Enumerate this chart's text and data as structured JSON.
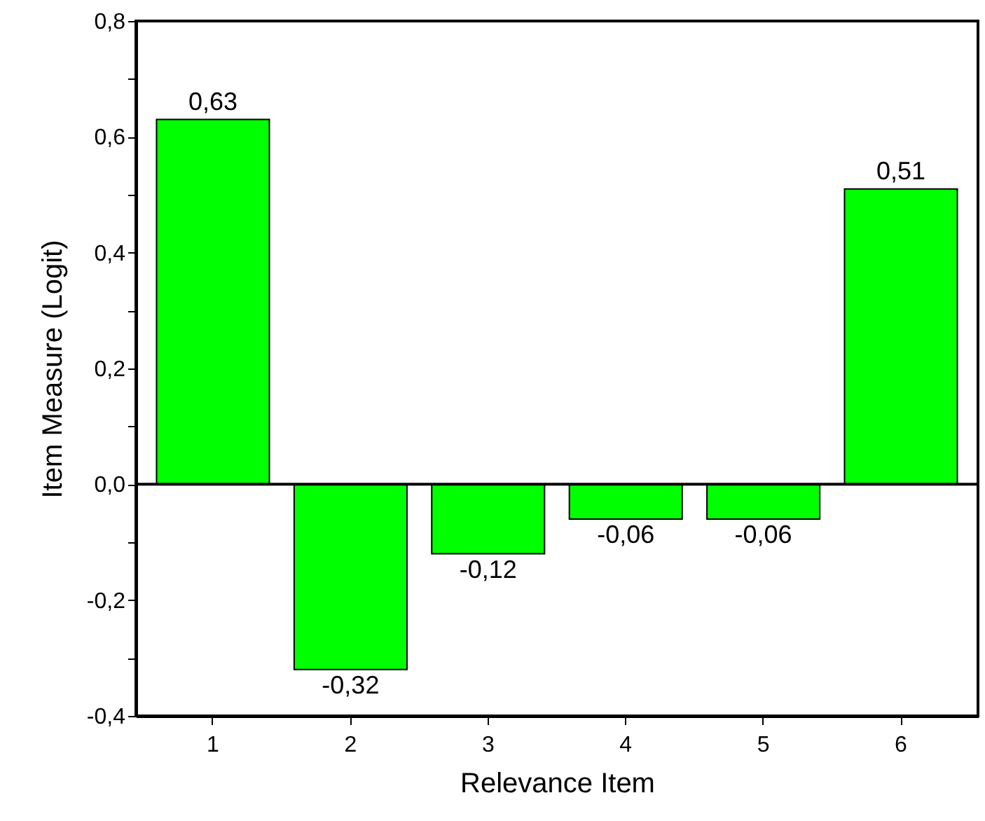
{
  "chart_data": {
    "type": "bar",
    "xlabel": "Relevance Item",
    "ylabel": "Item Measure (Logit)",
    "categories": [
      "1",
      "2",
      "3",
      "4",
      "5",
      "6"
    ],
    "values": [
      0.63,
      -0.32,
      -0.12,
      -0.06,
      -0.06,
      0.51
    ],
    "value_labels": [
      "0,63",
      "-0,32",
      "-0,12",
      "-0,06",
      "-0,06",
      "0,51"
    ],
    "color": "#00ff00",
    "ylim": [
      -0.4,
      0.8
    ],
    "yticks": [
      {
        "value": -0.4,
        "label": "-0,4"
      },
      {
        "value": -0.3,
        "label": null
      },
      {
        "value": -0.2,
        "label": "-0,2"
      },
      {
        "value": -0.1,
        "label": null
      },
      {
        "value": 0,
        "label": "0,0"
      },
      {
        "value": 0.1,
        "label": null
      },
      {
        "value": 0.2,
        "label": "0,2"
      },
      {
        "value": 0.3,
        "label": null
      },
      {
        "value": 0.4,
        "label": "0,4"
      },
      {
        "value": 0.5,
        "label": null
      },
      {
        "value": 0.6,
        "label": "0,6"
      },
      {
        "value": 0.7,
        "label": null
      },
      {
        "value": 0.8,
        "label": "0,8"
      }
    ],
    "ref_lines": [
      {
        "axis": "y",
        "value": 0
      }
    ],
    "grid": false
  }
}
